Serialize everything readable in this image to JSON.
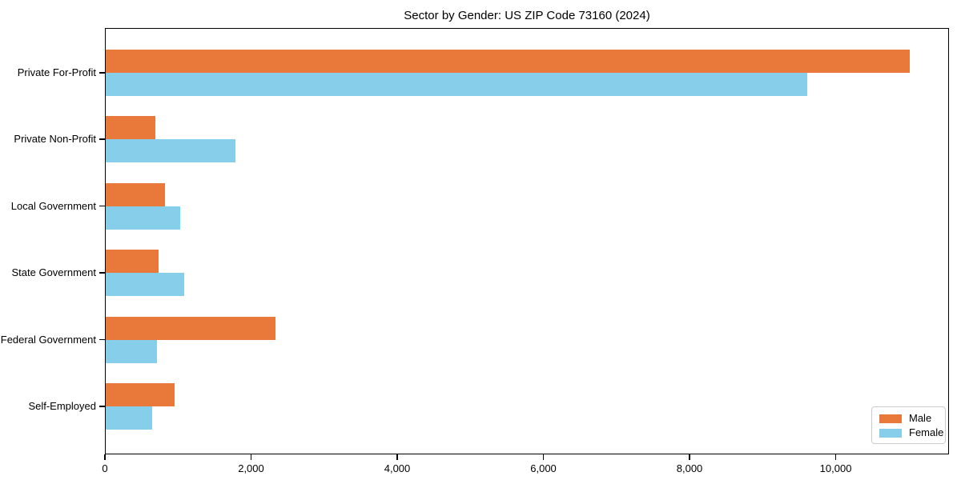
{
  "chart_data": {
    "type": "bar",
    "orientation": "horizontal",
    "title": "Sector by Gender: US ZIP Code 73160 (2024)",
    "categories": [
      "Private For-Profit",
      "Private Non-Profit",
      "Local Government",
      "State Government",
      "Federal Government",
      "Self-Employed"
    ],
    "series": [
      {
        "name": "Male",
        "color": "#e8793a",
        "values": [
          11000,
          675,
          815,
          725,
          2320,
          945
        ]
      },
      {
        "name": "Female",
        "color": "#87ceeb",
        "values": [
          9600,
          1780,
          1020,
          1075,
          700,
          635
        ]
      }
    ],
    "xlim": [
      0,
      11550
    ],
    "x_ticks": [
      0,
      2000,
      4000,
      6000,
      8000,
      10000
    ],
    "x_tick_labels": [
      "0",
      "2,000",
      "4,000",
      "6,000",
      "8,000",
      "10,000"
    ],
    "xlabel": "",
    "ylabel": "",
    "grid": false,
    "legend": {
      "position": "lower-right",
      "entries": [
        "Male",
        "Female"
      ]
    },
    "axis_color": "#000000",
    "text_color": "#000000",
    "background_color": "#ffffff"
  }
}
